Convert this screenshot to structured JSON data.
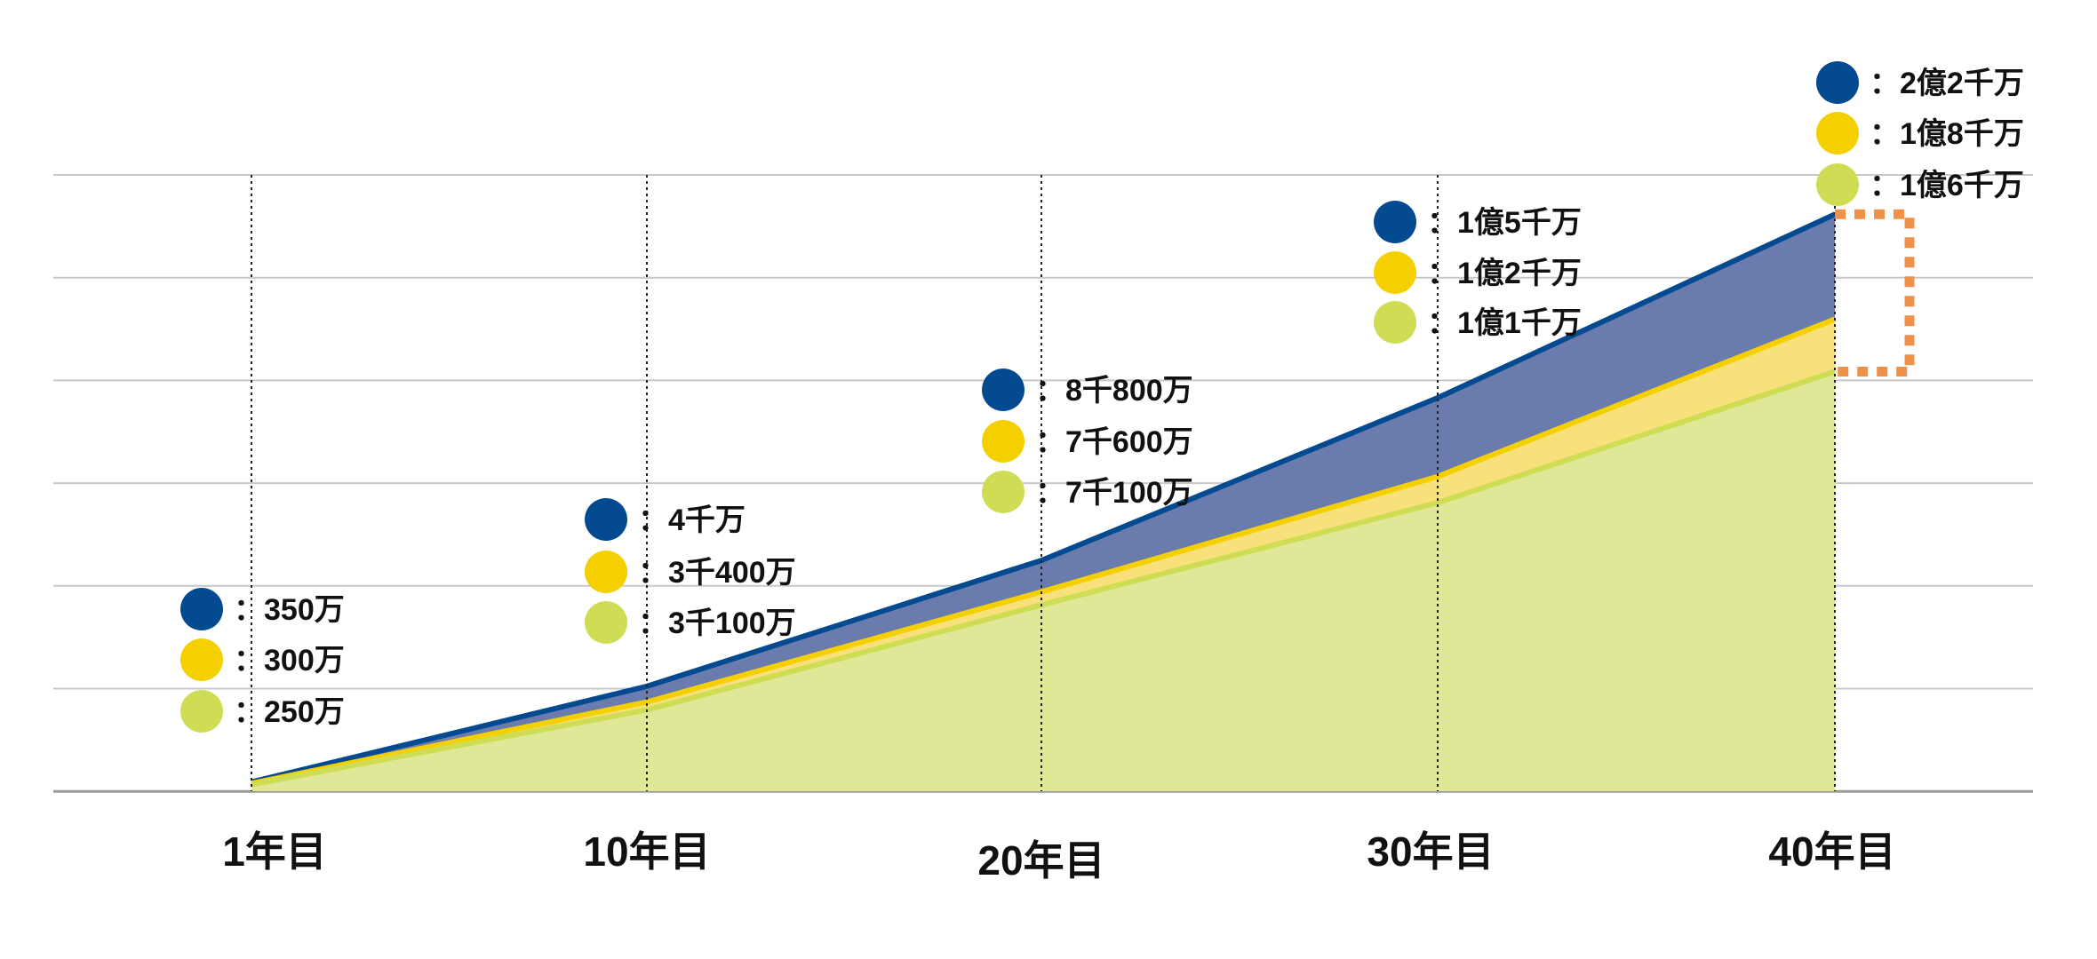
{
  "chart_data": {
    "type": "area",
    "categories": [
      "1年目",
      "10年目",
      "20年目",
      "30年目",
      "40年目"
    ],
    "unit": "万",
    "grid": true,
    "series": [
      {
        "key": "blue",
        "color": "#034a91",
        "fill": "#6a7bad",
        "values": [
          350,
          4000,
          8800,
          15000,
          22000
        ],
        "labels": [
          "350万",
          "4千万",
          "8千800万",
          "1億5千万",
          "2億2千万"
        ]
      },
      {
        "key": "yellow",
        "color": "#f5d000",
        "fill": "#f8e07a",
        "values": [
          300,
          3400,
          7600,
          12000,
          18000
        ],
        "labels": [
          "300万",
          "3千400万",
          "7千600万",
          "1億2千万",
          "1億8千万"
        ]
      },
      {
        "key": "green",
        "color": "#cfdd55",
        "fill": "#e0e898",
        "values": [
          250,
          3100,
          7100,
          11000,
          16000
        ],
        "labels": [
          "250万",
          "3千100万",
          "7千100万",
          "1億1千万",
          "1億6千万"
        ]
      }
    ],
    "label_separator": "：",
    "annotation": {
      "type": "bracket",
      "color": "#f0914a",
      "between": [
        "blue",
        "green"
      ],
      "at": "40年目"
    }
  }
}
